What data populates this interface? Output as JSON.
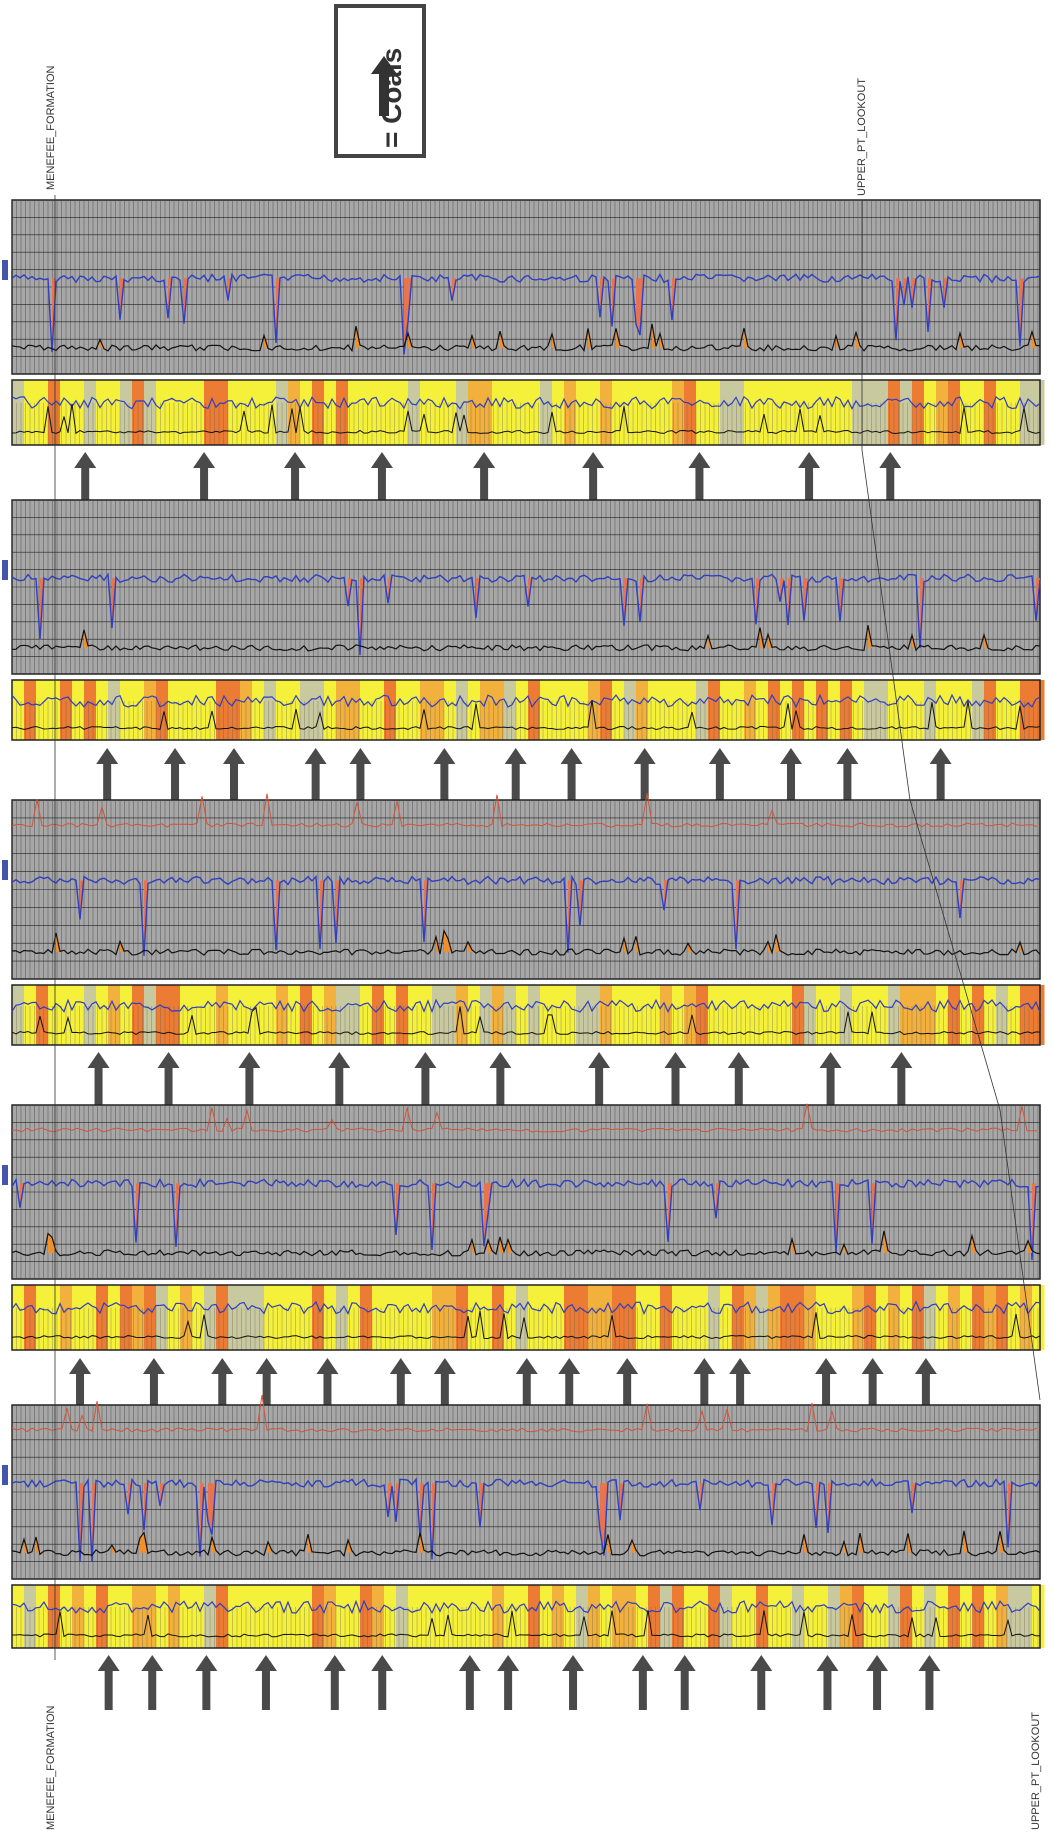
{
  "legend": {
    "text": "= Coals",
    "icon": "up-arrow-icon"
  },
  "formations": {
    "top_left": "MENEFEE_FORMATION",
    "top_right": "UPPER_PT_LOOKOUT",
    "bottom_left": "MENEFEE_FORMATION",
    "bottom_right": "UPPER_PT_LOOKOUT"
  },
  "colors": {
    "gamma_fill": "#e8734f",
    "gamma_line": "#2f3fbf",
    "density_fill": "#f0902a",
    "color_band_high": "#f5f03a",
    "color_band_mid": "#f2b13c",
    "color_band_low": "#ec7c34",
    "grid_bg": "#a7a7a7",
    "arrow": "#4a4a4a",
    "resistivity_line": "#d0543a"
  },
  "wells": [
    {
      "coal_arrows": 9
    },
    {
      "coal_arrows": 13
    },
    {
      "coal_arrows": 11
    },
    {
      "coal_arrows": 15
    },
    {
      "coal_arrows": 15
    }
  ]
}
